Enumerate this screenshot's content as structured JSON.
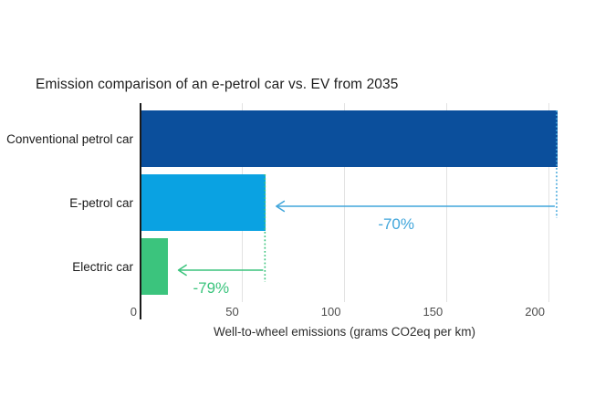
{
  "chart_data": {
    "type": "bar",
    "orientation": "horizontal",
    "title": "Emission comparison of an e-petrol car vs. EV from 2035",
    "categories": [
      "Conventional petrol car",
      "E-petrol car",
      "Electric car"
    ],
    "values": [
      204,
      61,
      13
    ],
    "bar_colors": [
      "#0b4f9c",
      "#0aa2e2",
      "#3bc47d"
    ],
    "xlabel": "Well-to-wheel emissions (grams CO2eq per km)",
    "xlim": [
      0,
      210
    ],
    "xticks": [
      0,
      50,
      100,
      150,
      200
    ],
    "grid": "vertical",
    "legend": "none",
    "annotations": [
      {
        "label": "-70%",
        "from_value": 204,
        "to_value": 61,
        "row": 1,
        "color": "#41a6db",
        "meaning": "e-petrol car vs conventional petrol car reduction"
      },
      {
        "label": "-79%",
        "from_value": 61,
        "to_value": 13,
        "row": 2,
        "color": "#3bc47d",
        "meaning": "electric car vs e-petrol car reduction"
      }
    ]
  },
  "colors": {
    "background": "#ffffff",
    "dark_blue": "#0b4f9c",
    "light_blue": "#0aa2e2",
    "green": "#3bc47d",
    "arrow_blue": "#41a6db",
    "gridline": "#e3e3e3",
    "axis": "#1a1a1a",
    "tick_text": "#4d4d4d",
    "title_text": "#1d1d1d"
  }
}
